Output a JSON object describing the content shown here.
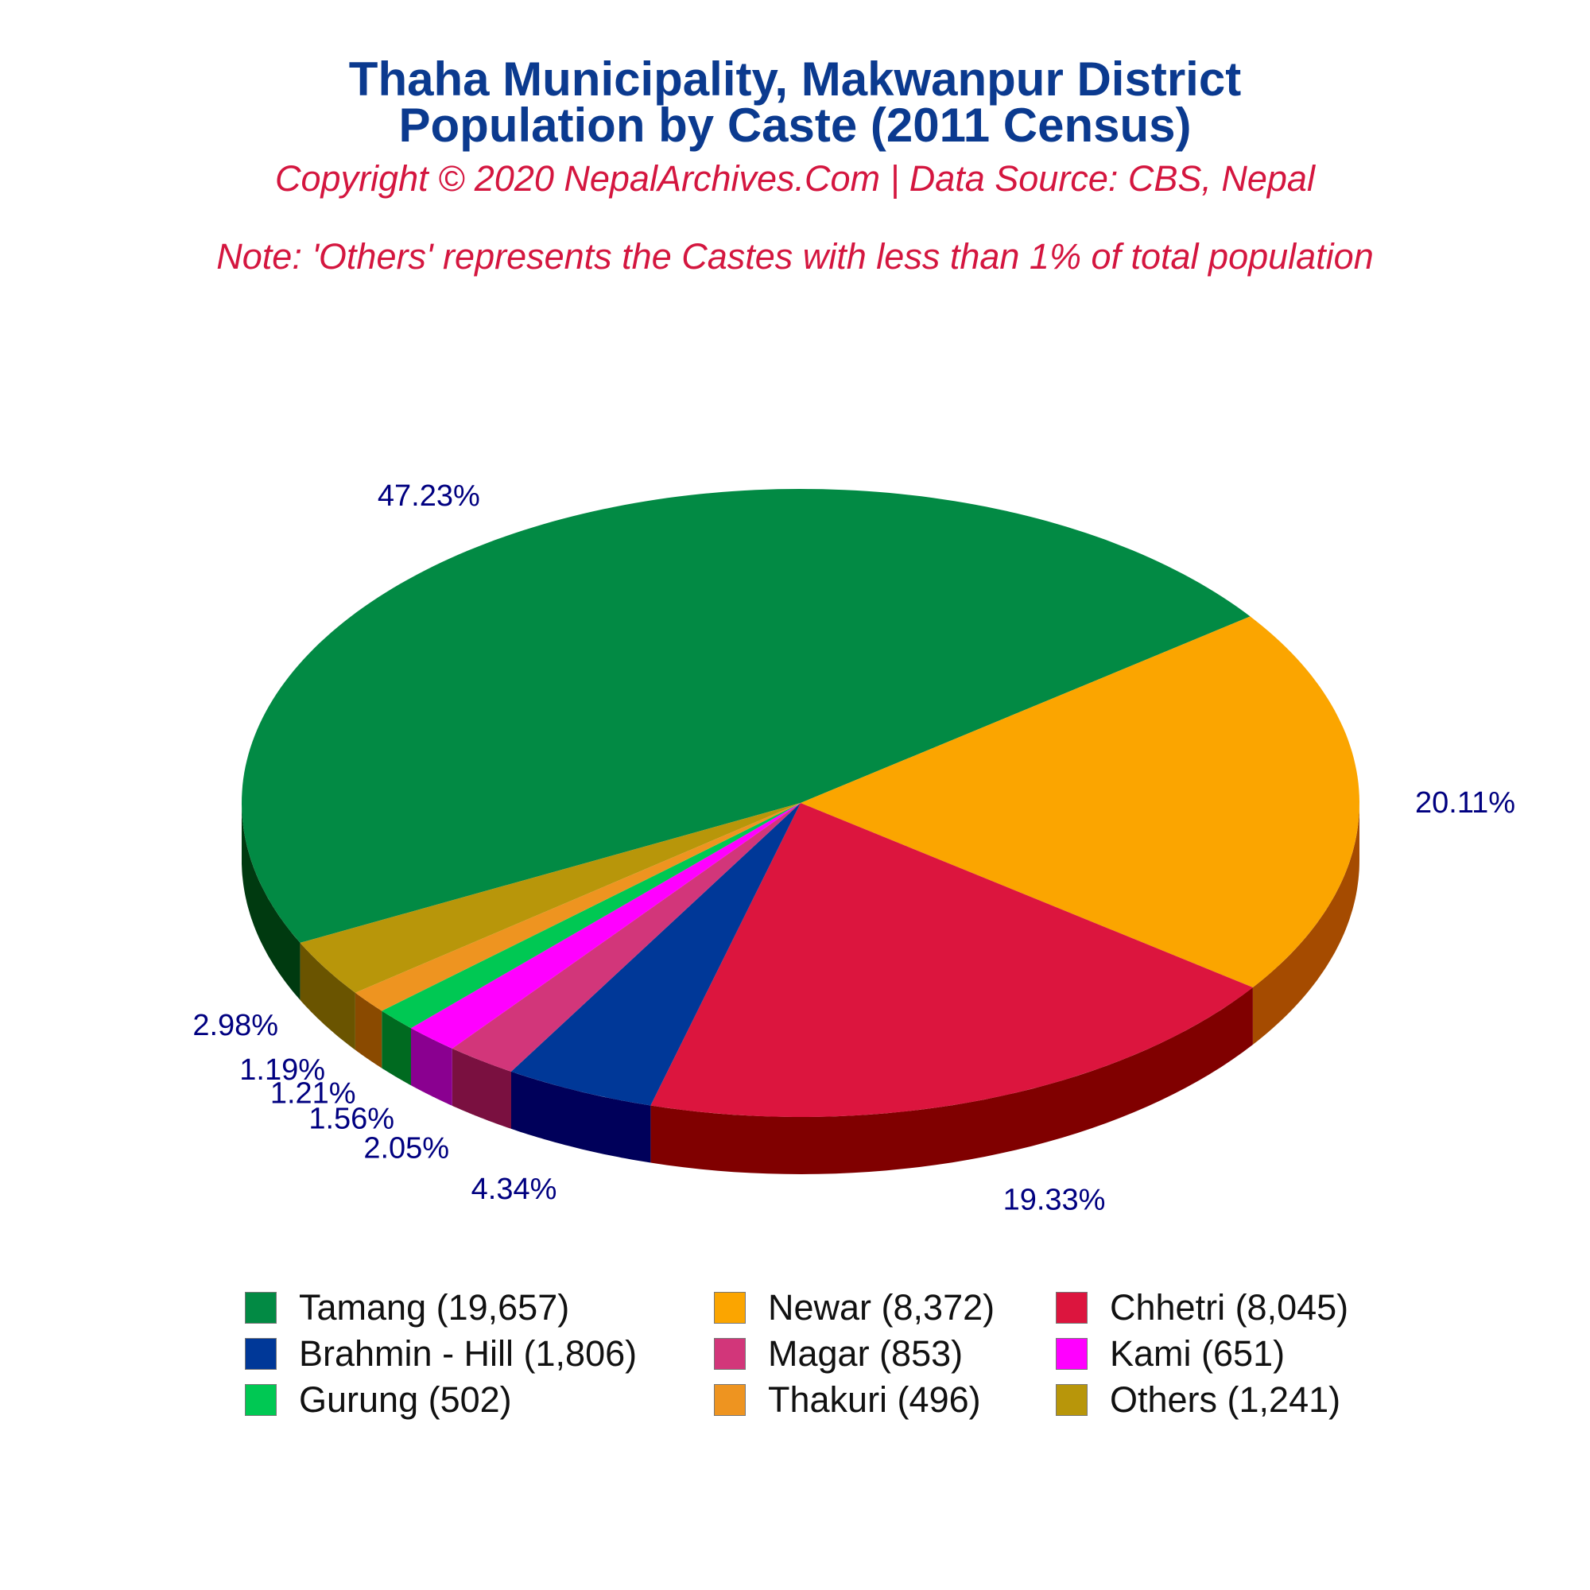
{
  "header": {
    "title_line1": "Thaha Municipality, Makwanpur District",
    "title_line2": "Population by Caste (2011 Census)",
    "copyright": "Copyright © 2020 NepalArchives.Com | Data Source: CBS, Nepal",
    "note": "Note: 'Others' represents the Castes with less than 1% of total population"
  },
  "chart_data": {
    "type": "pie",
    "style": "3d",
    "legend_position": "bottom",
    "categories": [
      "Tamang",
      "Newar",
      "Chhetri",
      "Brahmin - Hill",
      "Magar",
      "Kami",
      "Gurung",
      "Thakuri",
      "Others"
    ],
    "values": [
      19657,
      8372,
      8045,
      1806,
      853,
      651,
      502,
      496,
      1241
    ],
    "percent_labels": [
      "47.23%",
      "20.11%",
      "19.33%",
      "4.34%",
      "2.05%",
      "1.56%",
      "1.21%",
      "1.19%",
      "2.98%"
    ],
    "legend_labels": [
      "Tamang (19,657)",
      "Newar (8,372)",
      "Chhetri (8,045)",
      "Brahmin - Hill (1,806)",
      "Magar (853)",
      "Kami (651)",
      "Gurung (502)",
      "Thakuri (496)",
      "Others (1,241)"
    ],
    "colors": [
      "#028a44",
      "#fba500",
      "#dc153e",
      "#003898",
      "#d2367a",
      "#ff00ff",
      "#00c853",
      "#ee9420",
      "#b8960a"
    ],
    "side_colors": [
      "#003a10",
      "#a54b00",
      "#800000",
      "#00005a",
      "#7a1040",
      "#8a0090",
      "#006a20",
      "#8a4a00",
      "#6a5400"
    ],
    "label_color": "#000080"
  }
}
